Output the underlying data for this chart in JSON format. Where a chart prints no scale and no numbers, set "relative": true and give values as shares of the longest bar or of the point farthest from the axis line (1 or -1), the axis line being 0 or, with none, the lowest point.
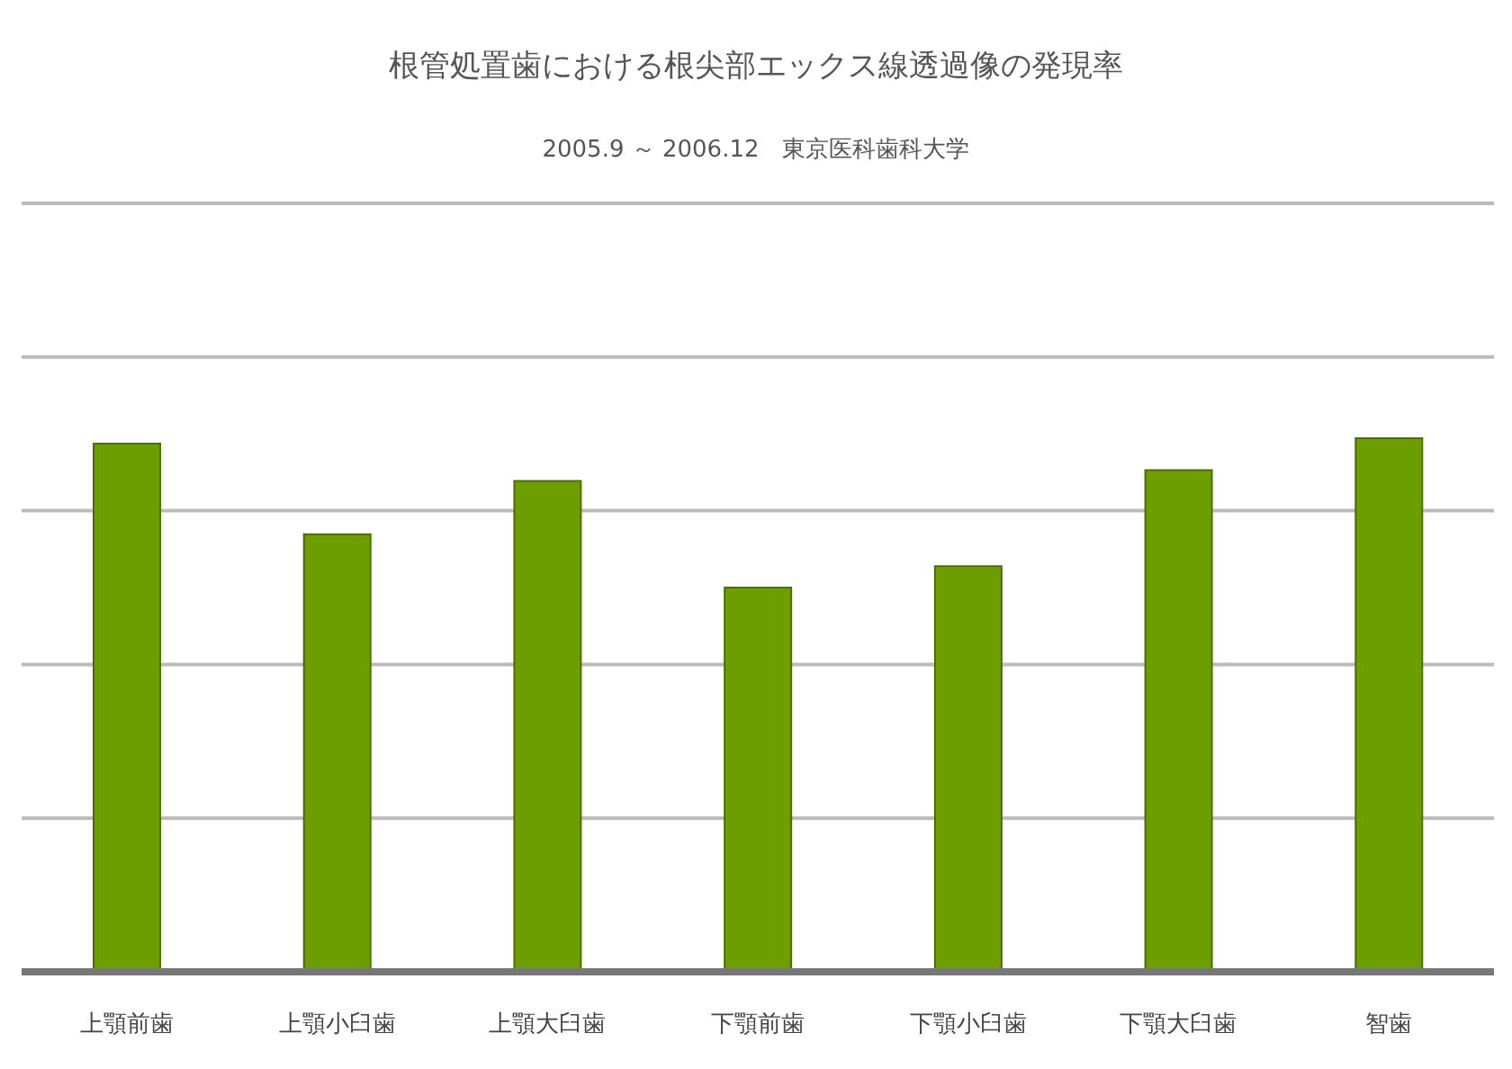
{
  "chart_data": {
    "type": "bar",
    "title": "根管処置歯における根尖部エックス線透過像の発現率",
    "subtitle": "2005.9 ～ 2006.12　東京医科歯科大学",
    "categories": [
      "上顎前歯",
      "上顎小臼歯",
      "上顎大臼歯",
      "下顎前歯",
      "下顎小臼歯",
      "下顎大臼歯",
      "智歯"
    ],
    "values": [
      0.99,
      0.82,
      0.92,
      0.72,
      0.76,
      0.94,
      1
    ],
    "color": "#6c9e00",
    "relative": true,
    "grid": "y"
  }
}
